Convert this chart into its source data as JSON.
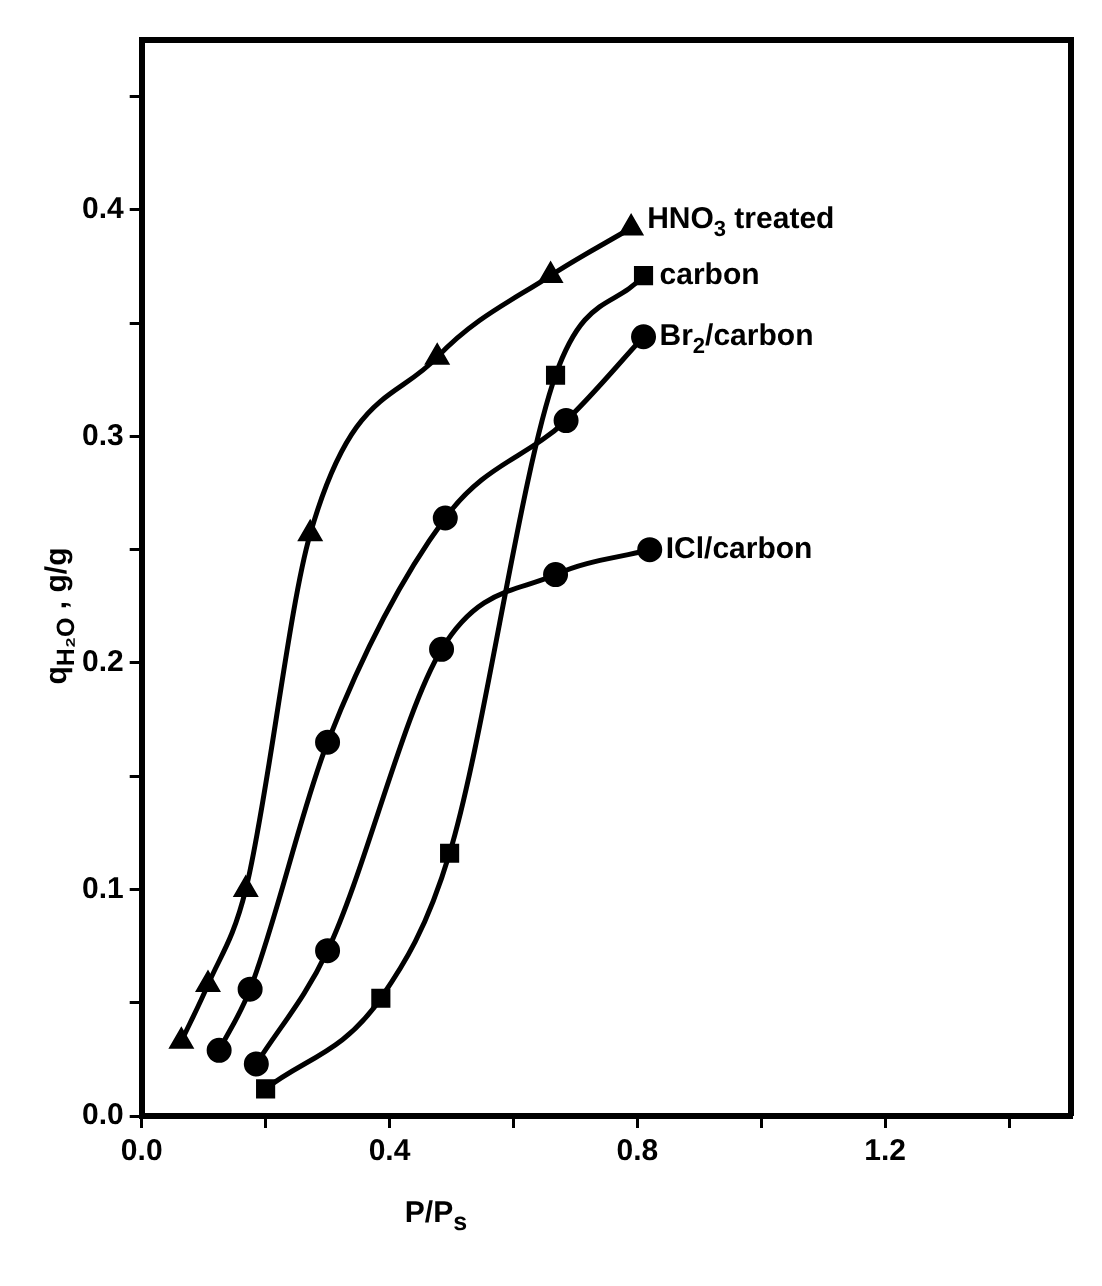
{
  "chart_data": {
    "type": "line",
    "xlabel": "P/P$_{s}$",
    "ylabel": "q$_{H₂O}$  ,  g/g",
    "xlim": [
      0,
      1.5
    ],
    "ylim": [
      0,
      0.475
    ],
    "xticks": [
      {
        "value": 0,
        "label": "0.0"
      },
      {
        "value": 0.2,
        "label": null
      },
      0.4,
      {
        "value": 0.6,
        "label": null
      },
      0.8,
      {
        "value": 1,
        "label": null
      },
      1.2,
      {
        "value": 1.4,
        "label": null
      }
    ],
    "yticks": [
      {
        "value": 0,
        "label": "0.0"
      },
      {
        "value": 0.05,
        "label": null
      },
      0.1,
      {
        "value": 0.15,
        "label": null
      },
      0.2,
      {
        "value": 0.25,
        "label": null
      },
      0.3,
      {
        "value": 0.35,
        "label": null
      },
      0.4,
      {
        "value": 0.45,
        "label": null
      }
    ],
    "grid": false,
    "legend": false,
    "line_style": "solid",
    "series": [
      {
        "name": "HNO$_{3}$ treated",
        "color": "#000000",
        "marker": "triangle",
        "x": [
          0.064,
          0.107,
          0.168,
          0.272,
          0.477,
          0.66,
          0.79
        ],
        "values": [
          0.033,
          0.058,
          0.1,
          0.257,
          0.335,
          0.371,
          0.392
        ]
      },
      {
        "name": "carbon",
        "color": "#000000",
        "marker": "square",
        "x": [
          0.2,
          0.386,
          0.497,
          0.668,
          0.81
        ],
        "values": [
          0.012,
          0.052,
          0.116,
          0.327,
          0.371
        ]
      },
      {
        "name": "Br$_{2}$/carbon",
        "color": "#000000",
        "marker": "circle",
        "x": [
          0.125,
          0.175,
          0.3,
          0.49,
          0.685,
          0.81
        ],
        "values": [
          0.029,
          0.056,
          0.165,
          0.264,
          0.307,
          0.344
        ]
      },
      {
        "name": "ICl/carbon",
        "color": "#000000",
        "marker": "circle",
        "x": [
          0.185,
          0.3,
          0.484,
          0.668,
          0.82
        ],
        "values": [
          0.023,
          0.073,
          0.206,
          0.239,
          0.25
        ]
      }
    ]
  }
}
